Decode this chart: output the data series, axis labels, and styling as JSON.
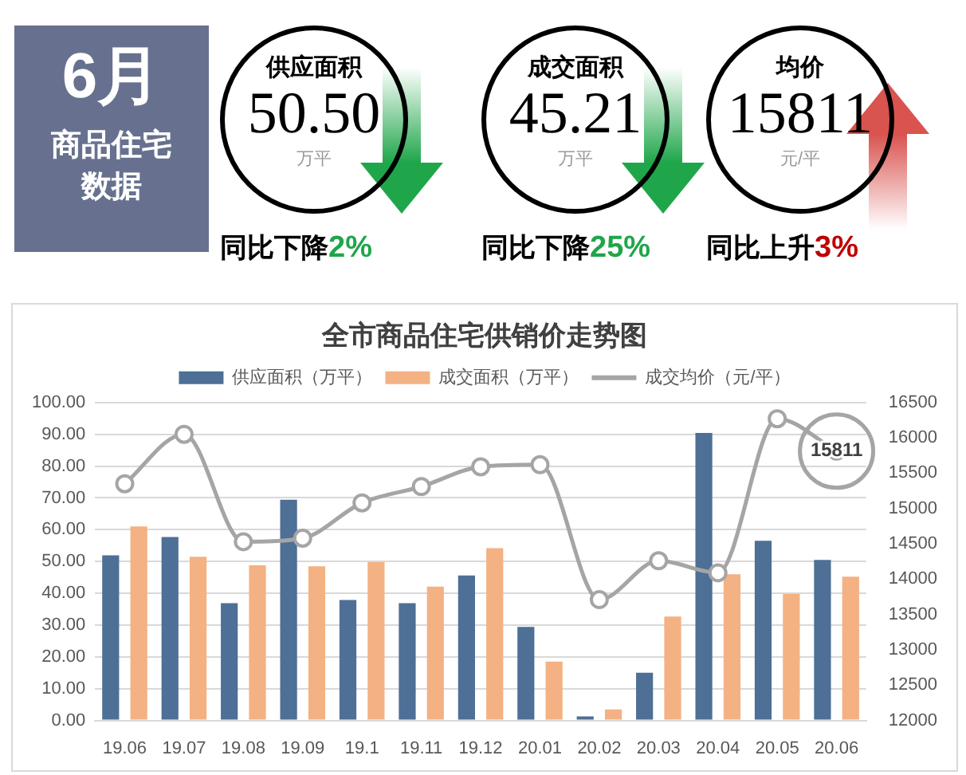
{
  "chart_data": [
    {
      "type": "other",
      "title": "6月",
      "subtitle": "商品住宅数据",
      "annotations": [
        "供应面积",
        "50.50",
        "万平",
        "同比下降",
        "2%",
        "成交面积",
        "45.21",
        "万平",
        "同比下降",
        "25%",
        "均价",
        "15811",
        "元/平",
        "同比上升",
        "3%"
      ]
    },
    {
      "type": "bar",
      "title": "全市商品住宅供销价走势图",
      "categories": [
        "19.06",
        "19.07",
        "19.08",
        "19.09",
        "19.1",
        "19.11",
        "19.12",
        "20.01",
        "20.02",
        "20.03",
        "20.04",
        "20.05",
        "20.06"
      ],
      "series": [
        {
          "name": "供应面积（万平）",
          "color": "#4e6f96",
          "values": [
            51.9,
            57.7,
            36.9,
            69.4,
            37.9,
            36.9,
            45.6,
            29.4,
            1.3,
            15.0,
            90.4,
            56.5,
            50.5
          ]
        },
        {
          "name": "成交面积（万平）",
          "color": "#f4b183",
          "values": [
            61.0,
            51.5,
            48.8,
            48.5,
            49.8,
            42.1,
            54.2,
            18.5,
            3.5,
            32.7,
            46.0,
            39.8,
            45.2
          ]
        },
        {
          "name": "成交均价（元/平）",
          "type": "line",
          "axis": "y2",
          "color": "#a5a5a5",
          "marker": "circle",
          "values": [
            15350,
            16050,
            14530,
            14580,
            15080,
            15310,
            15590,
            15620,
            13710,
            14260,
            14090,
            16270,
            15811
          ],
          "value_labels": [
            null,
            null,
            null,
            null,
            null,
            null,
            null,
            null,
            null,
            null,
            null,
            null,
            "15811"
          ]
        }
      ],
      "ylim": [
        0,
        100
      ],
      "yticks": [
        {
          "value": 0,
          "label": "0.00"
        },
        {
          "value": 10,
          "label": "10.00"
        },
        {
          "value": 20,
          "label": "20.00"
        },
        {
          "value": 30,
          "label": "30.00"
        },
        {
          "value": 40,
          "label": "40.00"
        },
        {
          "value": 50,
          "label": "50.00"
        },
        {
          "value": 60,
          "label": "60.00"
        },
        {
          "value": 70,
          "label": "70.00"
        },
        {
          "value": 80,
          "label": "80.00"
        },
        {
          "value": 90,
          "label": "90.00"
        },
        {
          "value": 100,
          "label": "100.00"
        }
      ],
      "y2lim": [
        12000,
        16500
      ],
      "y2ticks": [
        12000,
        12500,
        13000,
        13500,
        14000,
        14500,
        15000,
        15500,
        16000,
        16500
      ],
      "grid": "y",
      "legend": "top"
    }
  ]
}
